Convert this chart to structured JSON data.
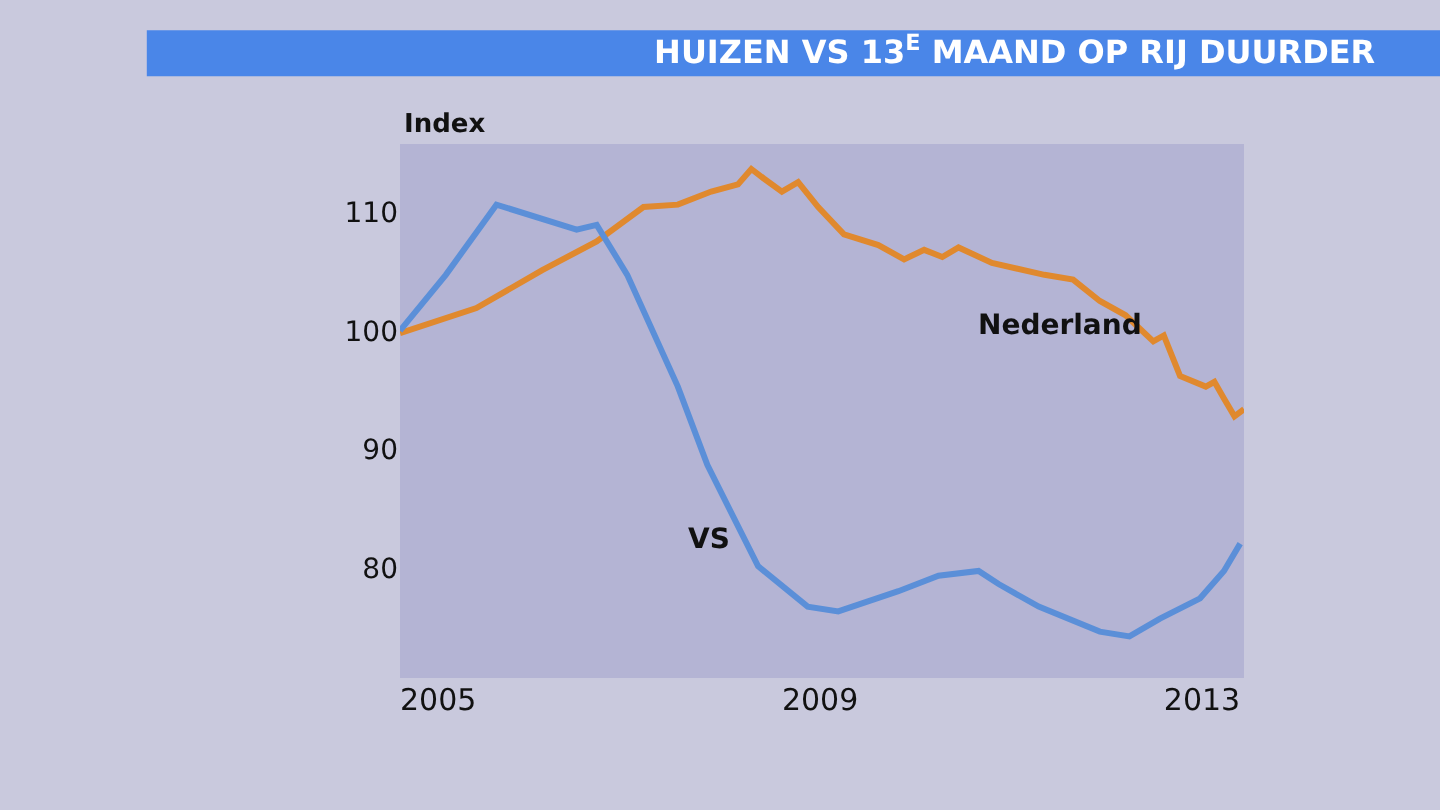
{
  "chart_data": {
    "type": "line",
    "title": "HUIZEN VS 13$^{E}$ MAAND OP RIJ DUURDER",
    "ylabel": "Index",
    "xlim": [
      2004.6,
      2013.44
    ],
    "xticks": [
      2005,
      2009,
      2013
    ],
    "ylim": [
      70.8,
      115.7
    ],
    "yticks": [
      80,
      90,
      100,
      110
    ],
    "grid": false,
    "legend": false,
    "marker": "none",
    "line_style": "solid",
    "series": [
      {
        "name": "Nederland",
        "color": "#e0892e",
        "x": [
          2004.6,
          2005.4,
          2006.09,
          2006.66,
          2007.15,
          2007.51,
          2007.86,
          2008.14,
          2008.28,
          2008.41,
          2008.6,
          2008.77,
          2008.98,
          2009.25,
          2009.61,
          2009.88,
          2010.09,
          2010.28,
          2010.45,
          2010.8,
          2011.35,
          2011.65,
          2011.93,
          2012.2,
          2012.49,
          2012.6,
          2012.77,
          2013.04,
          2013.13,
          2013.23,
          2013.34,
          2013.44
        ],
        "values": [
          99.8,
          101.9,
          105.1,
          107.5,
          110.4,
          110.6,
          111.7,
          112.3,
          113.6,
          112.8,
          111.7,
          112.5,
          110.4,
          108.1,
          107.2,
          106.0,
          106.8,
          106.2,
          107.0,
          105.7,
          104.7,
          104.3,
          102.5,
          101.3,
          99.1,
          99.6,
          96.2,
          95.3,
          95.7,
          94.3,
          92.8,
          93.4
        ]
      },
      {
        "name": "VS",
        "color": "#5b8fd8",
        "x": [
          2004.6,
          2005.08,
          2005.61,
          2006.45,
          2006.66,
          2006.98,
          2007.51,
          2007.82,
          2008.35,
          2008.87,
          2009.19,
          2009.82,
          2010.24,
          2010.66,
          2010.87,
          2011.29,
          2011.93,
          2012.24,
          2012.56,
          2012.98,
          2013.23,
          2013.4
        ],
        "values": [
          100.0,
          104.7,
          110.6,
          108.5,
          108.9,
          104.7,
          95.3,
          88.7,
          80.2,
          76.8,
          76.4,
          78.1,
          79.4,
          79.8,
          78.7,
          76.8,
          74.7,
          74.3,
          75.8,
          77.5,
          79.8,
          82.1
        ]
      }
    ]
  }
}
